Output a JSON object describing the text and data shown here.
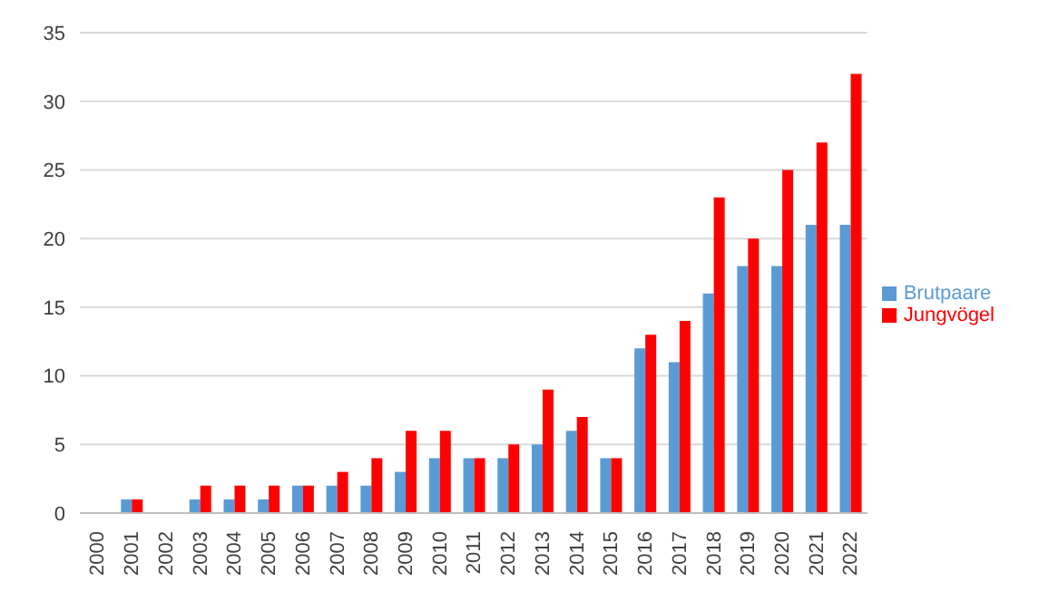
{
  "chart_data": {
    "type": "bar",
    "categories": [
      "2000",
      "2001",
      "2002",
      "2003",
      "2004",
      "2005",
      "2006",
      "2007",
      "2008",
      "2009",
      "2010",
      "2011",
      "2012",
      "2013",
      "2014",
      "2015",
      "2016",
      "2017",
      "2018",
      "2019",
      "2020",
      "2021",
      "2022"
    ],
    "series": [
      {
        "name": "Brutpaare",
        "color": "#5b9bd5",
        "values": [
          0,
          1,
          0,
          1,
          1,
          1,
          2,
          2,
          2,
          3,
          4,
          4,
          4,
          5,
          6,
          4,
          12,
          11,
          16,
          18,
          18,
          21,
          21
        ]
      },
      {
        "name": "Jungvögel",
        "color": "#ff0000",
        "values": [
          0,
          1,
          0,
          2,
          2,
          2,
          2,
          3,
          4,
          6,
          6,
          4,
          5,
          9,
          7,
          4,
          13,
          14,
          23,
          20,
          25,
          27,
          32
        ]
      }
    ],
    "ylim": [
      0,
      35
    ],
    "yticks": [
      0,
      5,
      10,
      15,
      20,
      25,
      30,
      35
    ],
    "grid": "y",
    "legend": "right"
  }
}
